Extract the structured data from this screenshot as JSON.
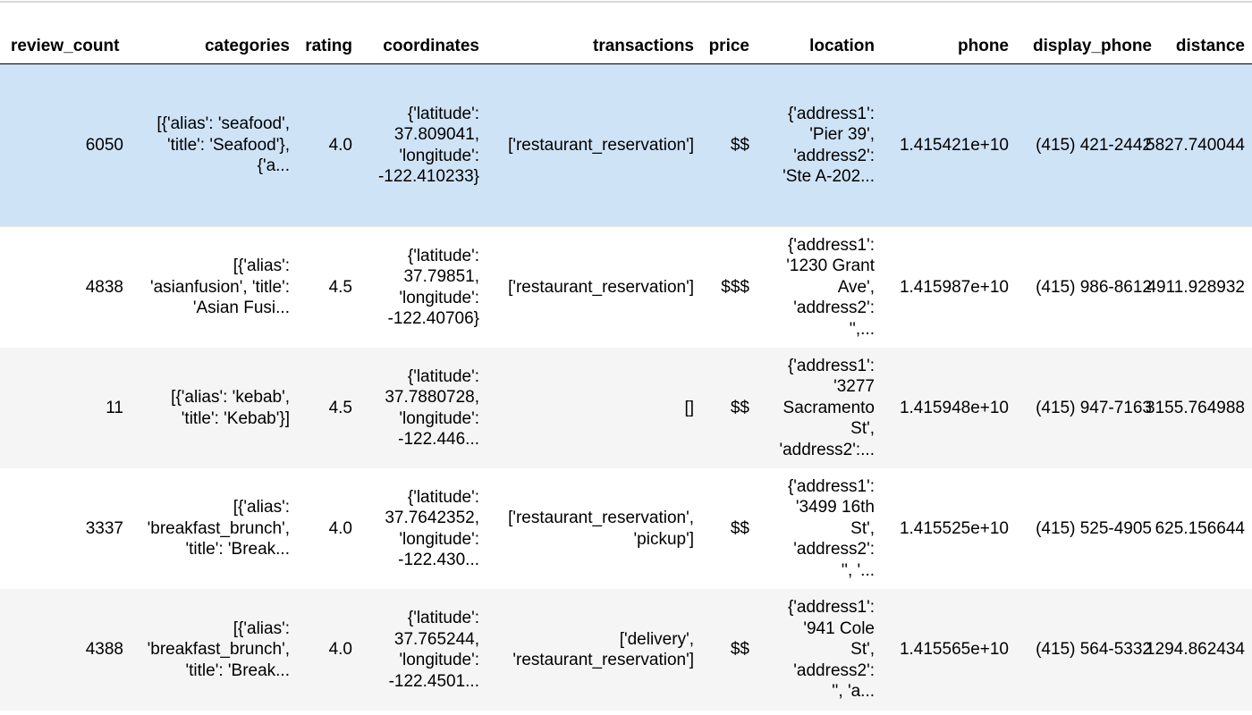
{
  "table": {
    "headers": [
      "review_count",
      "categories",
      "rating",
      "coordinates",
      "transactions",
      "price",
      "location",
      "phone",
      "display_phone",
      "distance"
    ],
    "rows": [
      [
        "6050",
        "[{'alias': 'seafood',\n'title': 'Seafood'},\n{'a...",
        "4.0",
        "{'latitude':\n37.809041,\n'longitude':\n-122.410233}",
        "['restaurant_reservation']",
        "$$",
        "{'address1':\n'Pier 39',\n'address2':\n'Ste A-202...",
        "1.415421e+10",
        "(415) 421-2442",
        "5827.740044"
      ],
      [
        "4838",
        "[{'alias':\n'asianfusion', 'title':\n'Asian Fusi...",
        "4.5",
        "{'latitude':\n37.79851,\n'longitude':\n-122.40706}",
        "['restaurant_reservation']",
        "$$$",
        "{'address1':\n'1230 Grant\nAve',\n'address2':\n'',...",
        "1.415987e+10",
        "(415) 986-8612",
        "4911.928932"
      ],
      [
        "11",
        "[{'alias': 'kebab',\n'title': 'Kebab'}]",
        "4.5",
        "{'latitude':\n37.7880728,\n'longitude':\n-122.446...",
        "[]",
        "$$",
        "{'address1':\n'3277\nSacramento\nSt',\n'address2':...",
        "1.415948e+10",
        "(415) 947-7163",
        "3155.764988"
      ],
      [
        "3337",
        "[{'alias':\n'breakfast_brunch',\n'title': 'Break...",
        "4.0",
        "{'latitude':\n37.7642352,\n'longitude':\n-122.430...",
        "['restaurant_reservation',\n'pickup']",
        "$$",
        "{'address1':\n'3499 16th\nSt',\n'address2':\n'', '...",
        "1.415525e+10",
        "(415) 525-4905",
        "625.156644"
      ],
      [
        "4388",
        "[{'alias':\n'breakfast_brunch',\n'title': 'Break...",
        "4.0",
        "{'latitude':\n37.765244,\n'longitude':\n-122.4501...",
        "['delivery',\n'restaurant_reservation']",
        "$$",
        "{'address1':\n'941 Cole\nSt',\n'address2':\n'', 'a...",
        "1.415565e+10",
        "(415) 564-5332",
        "1294.862434"
      ]
    ]
  },
  "colors": {
    "selected_row": "#cfe3f7",
    "striped_row": "#f5f5f5",
    "header_rule": "#000000"
  }
}
